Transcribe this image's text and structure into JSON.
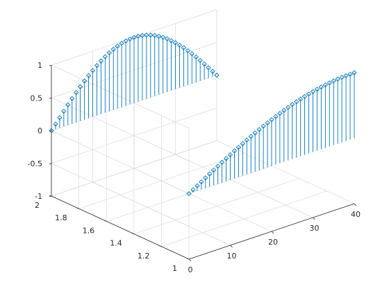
{
  "chart_data": {
    "type": "stem3",
    "title": "",
    "xlabel": "",
    "ylabel": "",
    "zlabel": "",
    "xlim": [
      0,
      40
    ],
    "ylim": [
      1,
      2
    ],
    "zlim": [
      -1,
      1
    ],
    "x_ticks": [
      0,
      10,
      20,
      30,
      40
    ],
    "y_ticks": [
      1,
      1.2,
      1.4,
      1.6,
      1.8,
      2
    ],
    "z_ticks": [
      -1,
      -0.5,
      0,
      0.5,
      1
    ],
    "x_tick_labels": [
      "0",
      "10",
      "20",
      "30",
      "40"
    ],
    "y_tick_labels": [
      "1",
      "1.2",
      "1.4",
      "1.6",
      "1.8",
      "2"
    ],
    "z_tick_labels": [
      "-1",
      "-0.5",
      "0",
      "0.5",
      "1"
    ],
    "grid": true,
    "box": true,
    "marker": "diamond",
    "color": "#0072bd",
    "grid_color": "#d9d9d9",
    "axis_color": "#262626",
    "series": [
      {
        "y": 1,
        "x": [
          0,
          1,
          2,
          3,
          4,
          5,
          6,
          7,
          8,
          9,
          10,
          11,
          12,
          13,
          14,
          15,
          16,
          17,
          18,
          19,
          20,
          21,
          22,
          23,
          24,
          25,
          26,
          27,
          28,
          29,
          30,
          31,
          32,
          33,
          34,
          35,
          36,
          37,
          38,
          39,
          40
        ],
        "z": [
          0,
          0.039,
          0.078,
          0.117,
          0.156,
          0.195,
          0.233,
          0.271,
          0.309,
          0.347,
          0.383,
          0.42,
          0.454,
          0.49,
          0.522,
          0.556,
          0.588,
          0.62,
          0.649,
          0.679,
          0.707,
          0.734,
          0.76,
          0.785,
          0.809,
          0.832,
          0.853,
          0.873,
          0.891,
          0.908,
          0.924,
          0.938,
          0.951,
          0.962,
          0.972,
          0.981,
          0.988,
          0.993,
          0.997,
          0.999,
          1.0
        ]
      },
      {
        "y": 2,
        "x": [
          0,
          1,
          2,
          3,
          4,
          5,
          6,
          7,
          8,
          9,
          10,
          11,
          12,
          13,
          14,
          15,
          16,
          17,
          18,
          19,
          20,
          21,
          22,
          23,
          24,
          25,
          26,
          27,
          28,
          29,
          30,
          31,
          32,
          33,
          34,
          35,
          36,
          37,
          38,
          39,
          40
        ],
        "z": [
          0,
          0.078,
          0.156,
          0.233,
          0.309,
          0.383,
          0.454,
          0.522,
          0.588,
          0.649,
          0.707,
          0.76,
          0.809,
          0.853,
          0.891,
          0.924,
          0.951,
          0.972,
          0.988,
          0.997,
          1.0,
          0.997,
          0.988,
          0.972,
          0.951,
          0.924,
          0.891,
          0.853,
          0.809,
          0.76,
          0.707,
          0.649,
          0.588,
          0.522,
          0.454,
          0.383,
          0.309,
          0.233,
          0.156,
          0.078,
          0.0
        ]
      }
    ]
  }
}
